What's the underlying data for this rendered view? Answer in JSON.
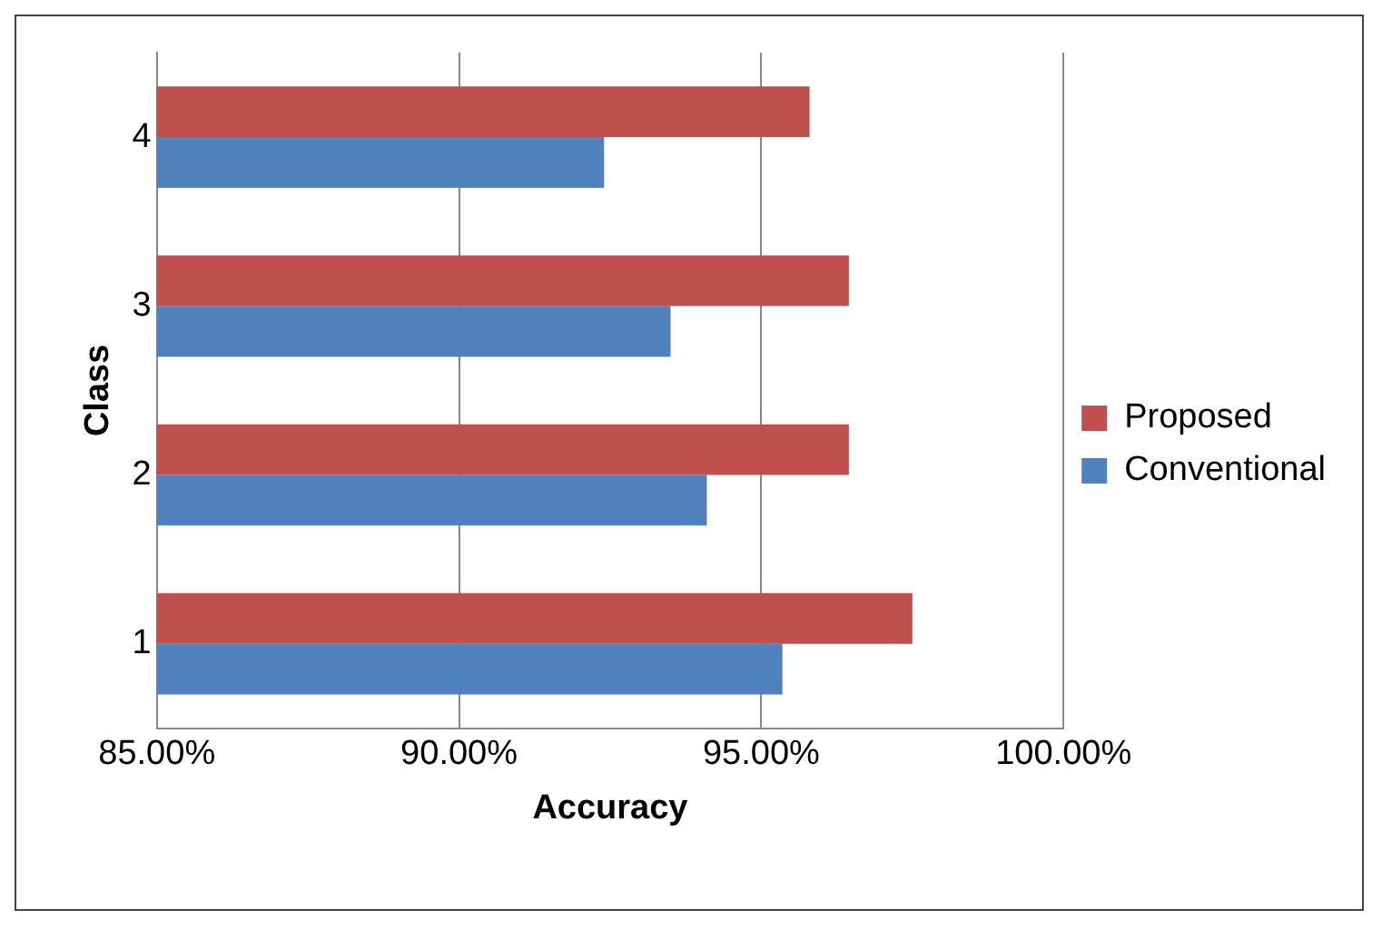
{
  "chart_data": {
    "type": "bar",
    "orientation": "horizontal",
    "xlabel": "Accuracy",
    "ylabel": "Class",
    "categories": [
      "4",
      "3",
      "2",
      "1"
    ],
    "series": [
      {
        "name": "Proposed",
        "color": "#c0504d",
        "values": [
          95.8,
          96.45,
          96.45,
          97.5
        ]
      },
      {
        "name": "Conventional",
        "color": "#4f81bd",
        "values": [
          92.4,
          93.5,
          94.1,
          95.35
        ]
      }
    ],
    "xlim": [
      85,
      100
    ],
    "xticks": [
      {
        "value": 85,
        "label": "85.00%"
      },
      {
        "value": 90,
        "label": "90.00%"
      },
      {
        "value": 95,
        "label": "95.00%"
      },
      {
        "value": 100,
        "label": "100.00%"
      }
    ],
    "grid": "x",
    "legend": "right"
  }
}
